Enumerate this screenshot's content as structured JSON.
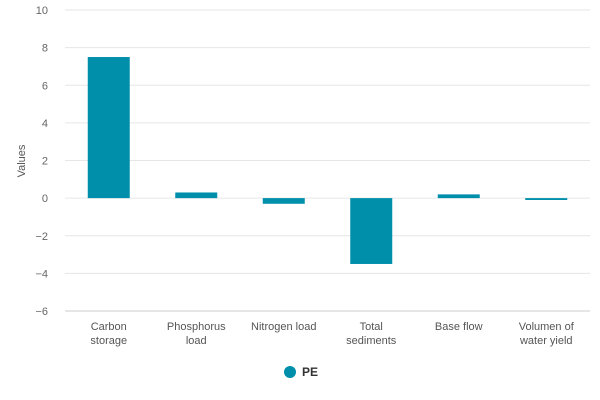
{
  "chart_data": {
    "type": "bar",
    "title": "",
    "xlabel": "",
    "ylabel": "Values",
    "ylim": [
      -6,
      10
    ],
    "yticks": [
      10,
      8,
      6,
      4,
      2,
      0,
      -2,
      -4,
      -6
    ],
    "ytick_labels": [
      "10",
      "8",
      "6",
      "4",
      "2",
      "0",
      "−2",
      "−4",
      "−6"
    ],
    "grid": true,
    "legend_position": "bottom-center",
    "categories": [
      [
        "Carbon",
        "storage"
      ],
      [
        "Phosphorus",
        "load"
      ],
      [
        "Nitrogen load"
      ],
      [
        "Total",
        "sediments"
      ],
      [
        "Base flow"
      ],
      [
        "Volumen of",
        "water yield"
      ]
    ],
    "series": [
      {
        "name": "PE",
        "color": "#008fab",
        "values": [
          7.5,
          0.3,
          -0.3,
          -3.5,
          0.2,
          -0.1
        ]
      }
    ]
  }
}
